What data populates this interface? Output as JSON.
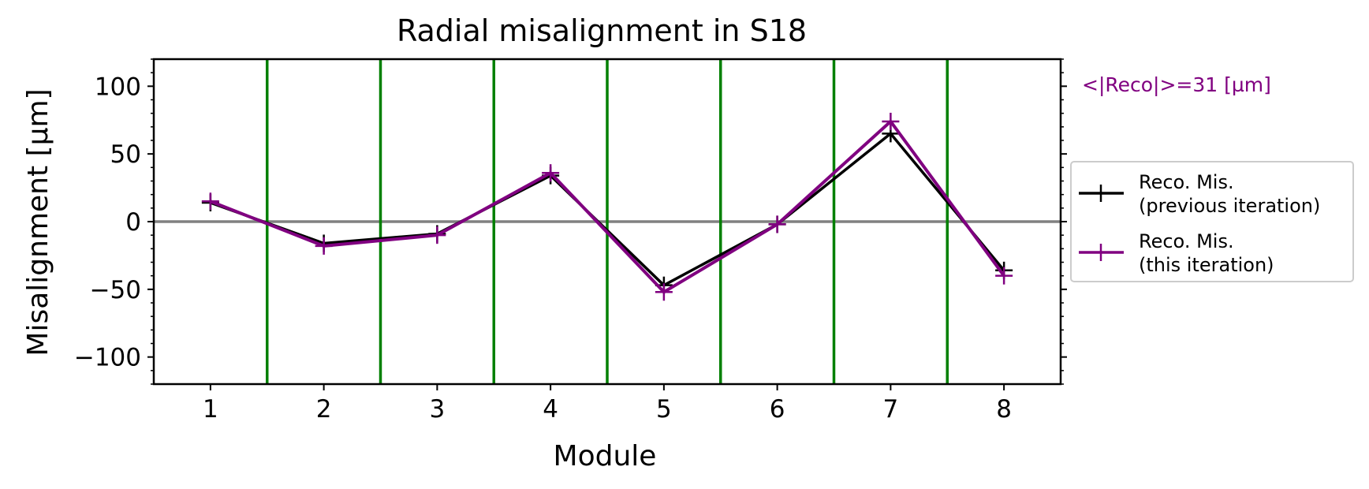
{
  "chart_data": {
    "type": "line",
    "title": "Radial misalignment in S18",
    "xlabel": "Module",
    "ylabel": "Misalignment  [µm]",
    "xlim": [
      0.5,
      8.5
    ],
    "ylim": [
      -120,
      120
    ],
    "x": [
      1,
      2,
      3,
      4,
      5,
      6,
      7,
      8
    ],
    "x_ticks": [
      "1",
      "2",
      "3",
      "4",
      "5",
      "6",
      "7",
      "8"
    ],
    "y_ticks": [
      100,
      50,
      0,
      -50,
      -100
    ],
    "y_tick_labels": [
      "100",
      "50",
      "0",
      "−50",
      "−100"
    ],
    "separators": [
      1.5,
      2.5,
      3.5,
      4.5,
      5.5,
      6.5,
      7.5
    ],
    "zero_line": 0,
    "series": [
      {
        "name": "Reco. Mis. (previous iteration)",
        "legend_lines": [
          "Reco. Mis.",
          "(previous iteration)"
        ],
        "color": "#000000",
        "values": [
          14,
          -16,
          -9,
          34,
          -47,
          -2,
          65,
          -36
        ]
      },
      {
        "name": "Reco. Mis. (this iteration)",
        "legend_lines": [
          "Reco. Mis.",
          "(this iteration)"
        ],
        "color": "#800080",
        "values": [
          15,
          -18,
          -10,
          36,
          -52,
          -2,
          74,
          -40
        ]
      }
    ],
    "annotation": "<|Reco|>=31 [µm]",
    "annotation_color": "#800080",
    "separator_color": "#008000",
    "zero_line_color": "#808080",
    "grid": false,
    "legend_position": "right"
  }
}
